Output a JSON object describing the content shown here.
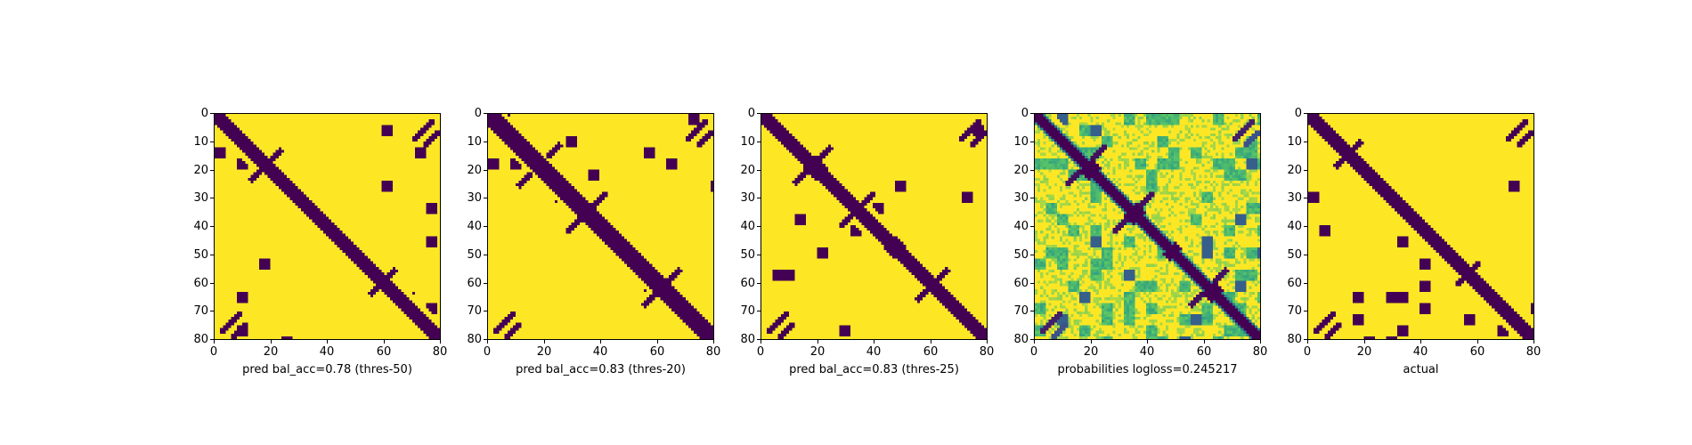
{
  "chart_data": [
    {
      "type": "heatmap",
      "variant": "binary",
      "xlabel": "pred bal_acc=0.78 (thres-50)",
      "xlim": [
        0,
        80
      ],
      "ylim": [
        80,
        0
      ],
      "xticks": [
        "0",
        "20",
        "40",
        "60",
        "80"
      ],
      "yticks": [
        "0",
        "10",
        "20",
        "30",
        "40",
        "50",
        "60",
        "70",
        "80"
      ],
      "diag_width": 1.8,
      "bands": [
        [
          17,
          20,
          3
        ],
        [
          45,
          47,
          3
        ],
        [
          60,
          63,
          3
        ]
      ],
      "anti": [
        [
          18,
          7,
          4
        ],
        [
          60,
          6,
          3
        ]
      ]
    },
    {
      "type": "heatmap",
      "variant": "binary",
      "xlabel": "pred bal_acc=0.83 (thres-20)",
      "xlim": [
        0,
        80
      ],
      "ylim": [
        80,
        0
      ],
      "xticks": [
        "0",
        "20",
        "40",
        "60",
        "80"
      ],
      "yticks": [
        "0",
        "10",
        "20",
        "30",
        "40",
        "50",
        "60",
        "70",
        "80"
      ],
      "diag_width": 2.6,
      "bands": [
        [
          18,
          22,
          4
        ],
        [
          33,
          36,
          4
        ],
        [
          47,
          50,
          4
        ],
        [
          62,
          65,
          4
        ]
      ],
      "anti": [
        [
          18,
          9,
          6
        ],
        [
          35,
          9,
          5
        ],
        [
          62,
          8,
          5
        ]
      ]
    },
    {
      "type": "heatmap",
      "variant": "binary",
      "xlabel": "pred bal_acc=0.83 (thres-25)",
      "xlim": [
        0,
        80
      ],
      "ylim": [
        80,
        0
      ],
      "xticks": [
        "0",
        "20",
        "40",
        "60",
        "80"
      ],
      "yticks": [
        "0",
        "10",
        "20",
        "30",
        "40",
        "50",
        "60",
        "70",
        "80"
      ],
      "diag_width": 2.4,
      "bands": [
        [
          17,
          21,
          4
        ],
        [
          33,
          36,
          3
        ],
        [
          46,
          49,
          4
        ],
        [
          61,
          64,
          3
        ]
      ],
      "anti": [
        [
          18,
          8,
          5
        ],
        [
          34,
          8,
          4
        ],
        [
          61,
          7,
          4
        ]
      ]
    },
    {
      "type": "heatmap",
      "variant": "probabilities",
      "xlabel": "probabilities logloss=0.245217",
      "xlim": [
        0,
        80
      ],
      "ylim": [
        80,
        0
      ],
      "xticks": [
        "0",
        "20",
        "40",
        "60",
        "80"
      ],
      "yticks": [
        "0",
        "10",
        "20",
        "30",
        "40",
        "50",
        "60",
        "70",
        "80"
      ],
      "diag_width": 2.2,
      "bands": [
        [
          18,
          21,
          4
        ],
        [
          34,
          37,
          4
        ],
        [
          48,
          50,
          4
        ],
        [
          62,
          65,
          4
        ]
      ],
      "anti": [
        [
          18,
          9,
          5
        ],
        [
          35,
          9,
          5
        ],
        [
          62,
          8,
          5
        ]
      ]
    },
    {
      "type": "heatmap",
      "variant": "binary",
      "xlabel": "actual",
      "xlim": [
        0,
        80
      ],
      "ylim": [
        80,
        0
      ],
      "xticks": [
        "0",
        "20",
        "40",
        "60",
        "80"
      ],
      "yticks": [
        "0",
        "10",
        "20",
        "30",
        "40",
        "50",
        "60",
        "70",
        "80"
      ],
      "diag_width": 2.0,
      "bands": [
        [
          17,
          19,
          3
        ],
        [
          44,
          47,
          3
        ],
        [
          58,
          61,
          3
        ]
      ],
      "anti": [
        [
          14,
          6,
          3
        ],
        [
          57,
          5,
          3
        ]
      ]
    }
  ],
  "colors": {
    "low": "#440154",
    "high": "#fde725",
    "mid1": "#3b528b",
    "mid2": "#21918c",
    "mid3": "#5ec962"
  }
}
